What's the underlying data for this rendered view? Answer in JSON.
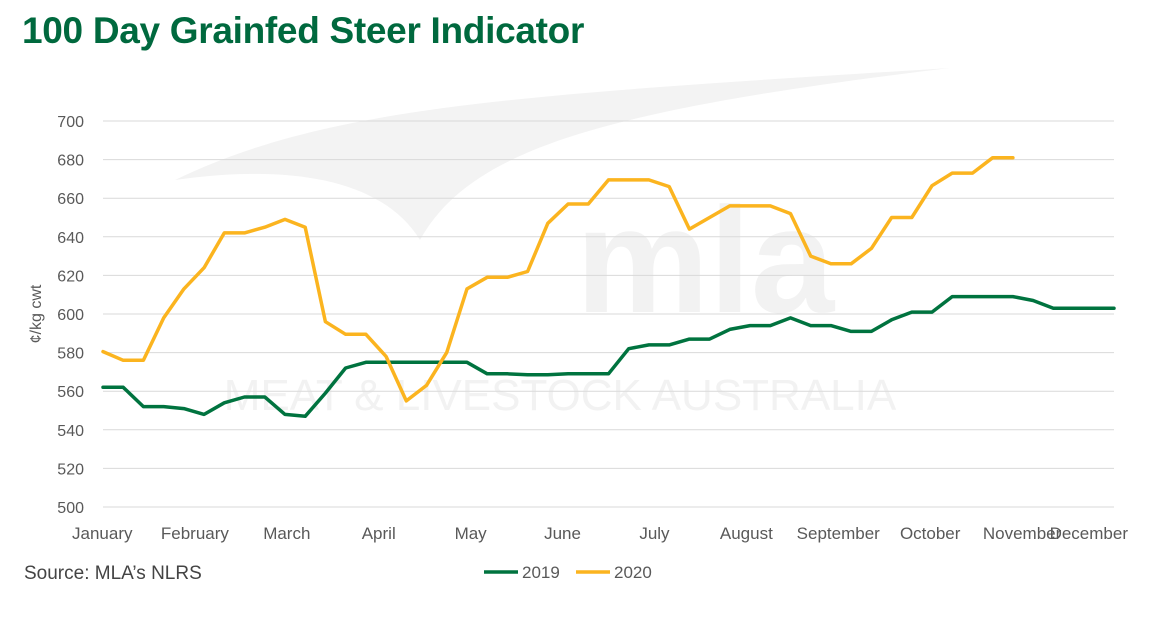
{
  "title": "100 Day Grainfed Steer Indicator",
  "source": "Source: MLA’s NLRS",
  "watermark": {
    "logo": "mla",
    "tagline": "MEAT & LIVESTOCK AUSTRALIA"
  },
  "colors": {
    "title": "#00693e",
    "series_2019": "#00733f",
    "series_2020": "#fbb41f",
    "grid": "#d9d9d9"
  },
  "chart_data": {
    "type": "line",
    "title": "100 Day Grainfed Steer Indicator",
    "xlabel": "",
    "ylabel": "¢/kg cwt",
    "ylim": [
      500,
      700
    ],
    "yticks": [
      500,
      520,
      540,
      560,
      580,
      600,
      620,
      640,
      660,
      680,
      700
    ],
    "months": [
      "January",
      "February",
      "March",
      "April",
      "May",
      "June",
      "July",
      "August",
      "September",
      "October",
      "November",
      "December"
    ],
    "x_unit": "week of year",
    "x_range": [
      1,
      51
    ],
    "grid": "horizontal",
    "legend_position": "bottom",
    "series": [
      {
        "name": "2019",
        "x": [
          1,
          2,
          3,
          4,
          5,
          6,
          7,
          8,
          9,
          10,
          11,
          12,
          13,
          14,
          15,
          16,
          17,
          18,
          19,
          20,
          21,
          22,
          23,
          24,
          25,
          26,
          27,
          28,
          29,
          30,
          31,
          32,
          33,
          34,
          35,
          36,
          37,
          38,
          39,
          40,
          41,
          42,
          43,
          44,
          45,
          46,
          47,
          48,
          49,
          50,
          51
        ],
        "y": [
          562,
          562,
          552,
          552,
          551,
          548,
          554,
          557,
          557,
          548,
          547,
          559,
          572,
          575,
          575,
          575,
          575,
          575,
          575,
          569,
          569,
          568.5,
          568.5,
          569,
          569,
          569,
          582,
          584,
          584,
          587,
          587,
          592,
          594,
          594,
          598,
          594,
          594,
          591,
          591,
          597,
          601,
          601,
          609,
          609,
          609,
          609,
          607,
          603,
          603,
          603,
          603
        ]
      },
      {
        "name": "2020",
        "x": [
          1,
          2,
          3,
          4,
          5,
          6,
          7,
          8,
          9,
          10,
          11,
          12,
          13,
          14,
          15,
          16,
          17,
          18,
          19,
          20,
          21,
          22,
          23,
          24,
          25,
          26,
          27,
          28,
          29,
          30,
          31,
          32,
          33,
          34,
          35,
          36,
          37,
          38,
          39,
          40,
          41,
          42,
          43,
          44,
          45,
          46
        ],
        "y": [
          580.5,
          576,
          576,
          598,
          613,
          624,
          642,
          642,
          645,
          649,
          645,
          596,
          589.5,
          589.5,
          578,
          555,
          563,
          580,
          613,
          619,
          619,
          622,
          647,
          657,
          657,
          669.5,
          669.5,
          669.5,
          666,
          644,
          650,
          656,
          656,
          656,
          652,
          630,
          626,
          626,
          634,
          650,
          650,
          666.5,
          673,
          673,
          681,
          681
        ]
      }
    ]
  }
}
